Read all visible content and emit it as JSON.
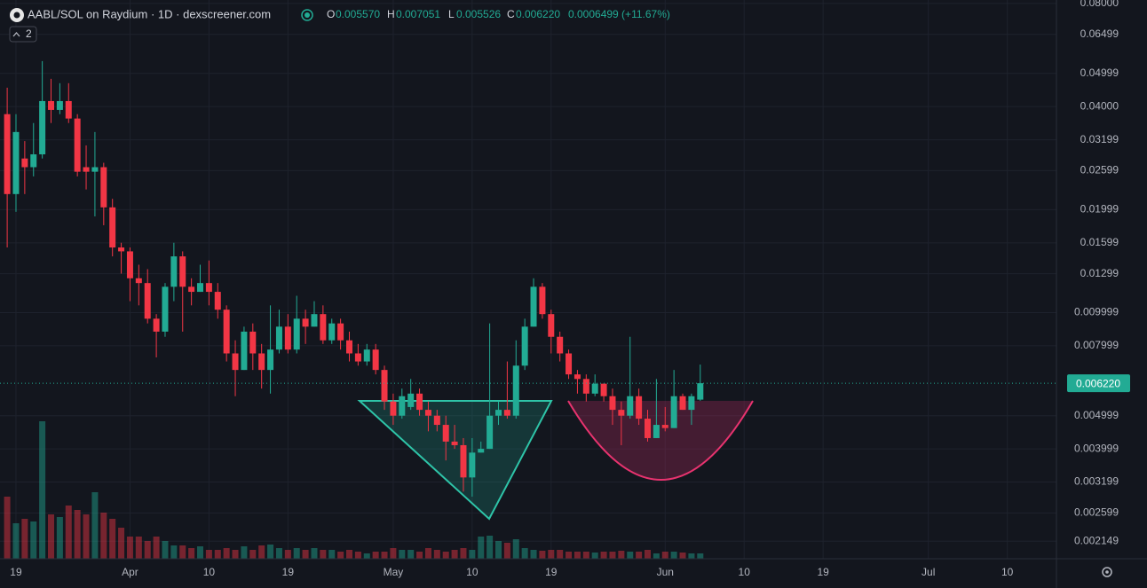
{
  "header": {
    "symbol": "AABL/SOL on Raydium · 1D · dexscreener.com",
    "badge": "2",
    "o_label": "O",
    "open": "0.005570",
    "h_label": "H",
    "high": "0.007051",
    "l_label": "L",
    "low": "0.005526",
    "c_label": "C",
    "close": "0.006220",
    "change": "0.0006499 (+11.67%)"
  },
  "chart_data": {
    "type": "candlestick",
    "log_scale": true,
    "grid": true,
    "up_color": "#22ab94",
    "down_color": "#f23645",
    "price_label": "0.006220",
    "ylim": [
      0.00191,
      0.0819
    ],
    "yticks": [
      {
        "value": 0.08,
        "label": "0.08000"
      },
      0.06499,
      0.04999,
      {
        "value": 0.04,
        "label": "0.04000"
      },
      0.03199,
      0.02599,
      0.01999,
      0.01599,
      0.01299,
      0.009999,
      0.007999,
      0.004999,
      0.003999,
      0.003199,
      0.002599,
      0.002149
    ],
    "xlim": [
      -0.82,
      119.6
    ],
    "xticks": [
      {
        "value": 1,
        "label": "19"
      },
      {
        "value": 14,
        "label": "Apr"
      },
      {
        "value": 23,
        "label": "10"
      },
      {
        "value": 32,
        "label": "19"
      },
      {
        "value": 44,
        "label": "May"
      },
      {
        "value": 53,
        "label": "10"
      },
      {
        "value": 62,
        "label": "19"
      },
      {
        "value": 75,
        "label": "Jun"
      },
      {
        "value": 84,
        "label": "10"
      },
      {
        "value": 93,
        "label": "19"
      },
      {
        "value": 105,
        "label": "Jul"
      },
      {
        "value": 114,
        "label": "10"
      }
    ],
    "open": [
      0.038,
      0.0222,
      0.0282,
      0.0266,
      0.029,
      0.0415,
      0.0391,
      0.0415,
      0.0369,
      0.0266,
      0.0258,
      0.0266,
      0.0203,
      0.0155,
      0.0151,
      0.0126,
      0.0122,
      0.0096,
      0.0088,
      0.0119,
      0.0146,
      0.0119,
      0.0115,
      0.0122,
      0.0115,
      0.0102,
      0.0076,
      0.0068,
      0.0088,
      0.0076,
      0.0068,
      0.0078,
      0.0091,
      0.0078,
      0.0096,
      0.0091,
      0.0099,
      0.0083,
      0.0093,
      0.0083,
      0.0076,
      0.0072,
      0.0078,
      0.0068,
      0.0055,
      0.005,
      0.0053,
      0.0058,
      0.0052,
      0.005,
      0.0047,
      0.0042,
      0.0041,
      0.0033,
      0.0039,
      0.004,
      0.005,
      0.0052,
      0.005,
      0.007,
      0.0091,
      0.0119,
      0.0099,
      0.0085,
      0.0076,
      0.0066,
      0.0064,
      0.0058,
      0.0062,
      0.0057,
      0.0052,
      0.005,
      0.0057,
      0.0049,
      0.0043,
      0.0047,
      0.0046,
      0.0057,
      0.0052,
      0.00557
    ],
    "high": [
      0.0454,
      0.038,
      0.0317,
      0.0358,
      0.0543,
      0.0482,
      0.0468,
      0.0468,
      0.038,
      0.0308,
      0.0337,
      0.0274,
      0.0215,
      0.016,
      0.0155,
      0.0138,
      0.0134,
      0.0099,
      0.0122,
      0.016,
      0.0151,
      0.0126,
      0.0138,
      0.0142,
      0.0122,
      0.0105,
      0.0083,
      0.0091,
      0.0093,
      0.0081,
      0.0105,
      0.0102,
      0.0099,
      0.0112,
      0.0102,
      0.0108,
      0.0105,
      0.0096,
      0.0096,
      0.0088,
      0.0081,
      0.0081,
      0.0081,
      0.007,
      0.0058,
      0.006,
      0.0064,
      0.006,
      0.0055,
      0.0052,
      0.005,
      0.0047,
      0.0043,
      0.0043,
      0.0042,
      0.0093,
      0.0055,
      0.0072,
      0.0083,
      0.0096,
      0.0126,
      0.0122,
      0.0102,
      0.0088,
      0.0078,
      0.0068,
      0.0066,
      0.0066,
      0.0062,
      0.006,
      0.0055,
      0.0085,
      0.006,
      0.0052,
      0.0064,
      0.0053,
      0.0068,
      0.0058,
      0.0058,
      0.007051
    ],
    "low": [
      0.0155,
      0.0197,
      0.0222,
      0.025,
      0.0282,
      0.0358,
      0.038,
      0.0358,
      0.025,
      0.0229,
      0.0191,
      0.018,
      0.0146,
      0.013,
      0.0108,
      0.0105,
      0.0093,
      0.0074,
      0.0085,
      0.0108,
      0.0088,
      0.0105,
      0.0115,
      0.0105,
      0.0096,
      0.0072,
      0.0057,
      0.0068,
      0.0068,
      0.006,
      0.0058,
      0.0076,
      0.0076,
      0.0076,
      0.0081,
      0.0091,
      0.0081,
      0.0081,
      0.0078,
      0.0072,
      0.007,
      0.007,
      0.0066,
      0.0052,
      0.0047,
      0.0049,
      0.0052,
      0.005,
      0.0045,
      0.0045,
      0.0037,
      0.004,
      0.003,
      0.0029,
      0.0039,
      0.004,
      0.0047,
      0.0049,
      0.0049,
      0.0068,
      0.0091,
      0.0096,
      0.0076,
      0.0072,
      0.0064,
      0.0058,
      0.0055,
      0.0057,
      0.0055,
      0.0047,
      0.0041,
      0.0049,
      0.0047,
      0.0042,
      0.0043,
      0.0045,
      0.0046,
      0.0052,
      0.0047,
      0.005526
    ],
    "close": [
      0.0222,
      0.0337,
      0.0266,
      0.029,
      0.0415,
      0.0391,
      0.0415,
      0.0369,
      0.0258,
      0.0258,
      0.0266,
      0.0203,
      0.0155,
      0.0151,
      0.0126,
      0.0122,
      0.0096,
      0.0088,
      0.0119,
      0.0146,
      0.0119,
      0.0115,
      0.0122,
      0.0115,
      0.0102,
      0.0076,
      0.0068,
      0.0088,
      0.0076,
      0.0068,
      0.0078,
      0.0091,
      0.0078,
      0.0096,
      0.0091,
      0.0099,
      0.0083,
      0.0093,
      0.0083,
      0.0076,
      0.0072,
      0.0078,
      0.0068,
      0.0055,
      0.005,
      0.0057,
      0.0058,
      0.0052,
      0.005,
      0.0047,
      0.0042,
      0.0041,
      0.0033,
      0.0039,
      0.004,
      0.005,
      0.0052,
      0.005,
      0.007,
      0.0091,
      0.0119,
      0.0099,
      0.0085,
      0.0076,
      0.0066,
      0.0064,
      0.0058,
      0.0062,
      0.0057,
      0.0052,
      0.005,
      0.0057,
      0.0049,
      0.0043,
      0.0047,
      0.0046,
      0.0057,
      0.0052,
      0.0057,
      0.00622
    ],
    "volume": [
      70,
      40,
      45,
      42,
      155,
      50,
      47,
      60,
      55,
      50,
      75,
      52,
      45,
      35,
      25,
      25,
      20,
      25,
      20,
      15,
      15,
      12,
      14,
      10,
      10,
      12,
      10,
      14,
      10,
      15,
      16,
      12,
      10,
      12,
      10,
      12,
      10,
      10,
      8,
      10,
      8,
      6,
      8,
      8,
      12,
      10,
      10,
      8,
      12,
      10,
      8,
      10,
      12,
      10,
      25,
      26,
      20,
      18,
      22,
      12,
      10,
      9,
      10,
      10,
      8,
      8,
      8,
      7,
      8,
      8,
      9,
      8,
      8,
      10,
      6,
      8,
      8,
      7,
      6,
      6
    ]
  }
}
